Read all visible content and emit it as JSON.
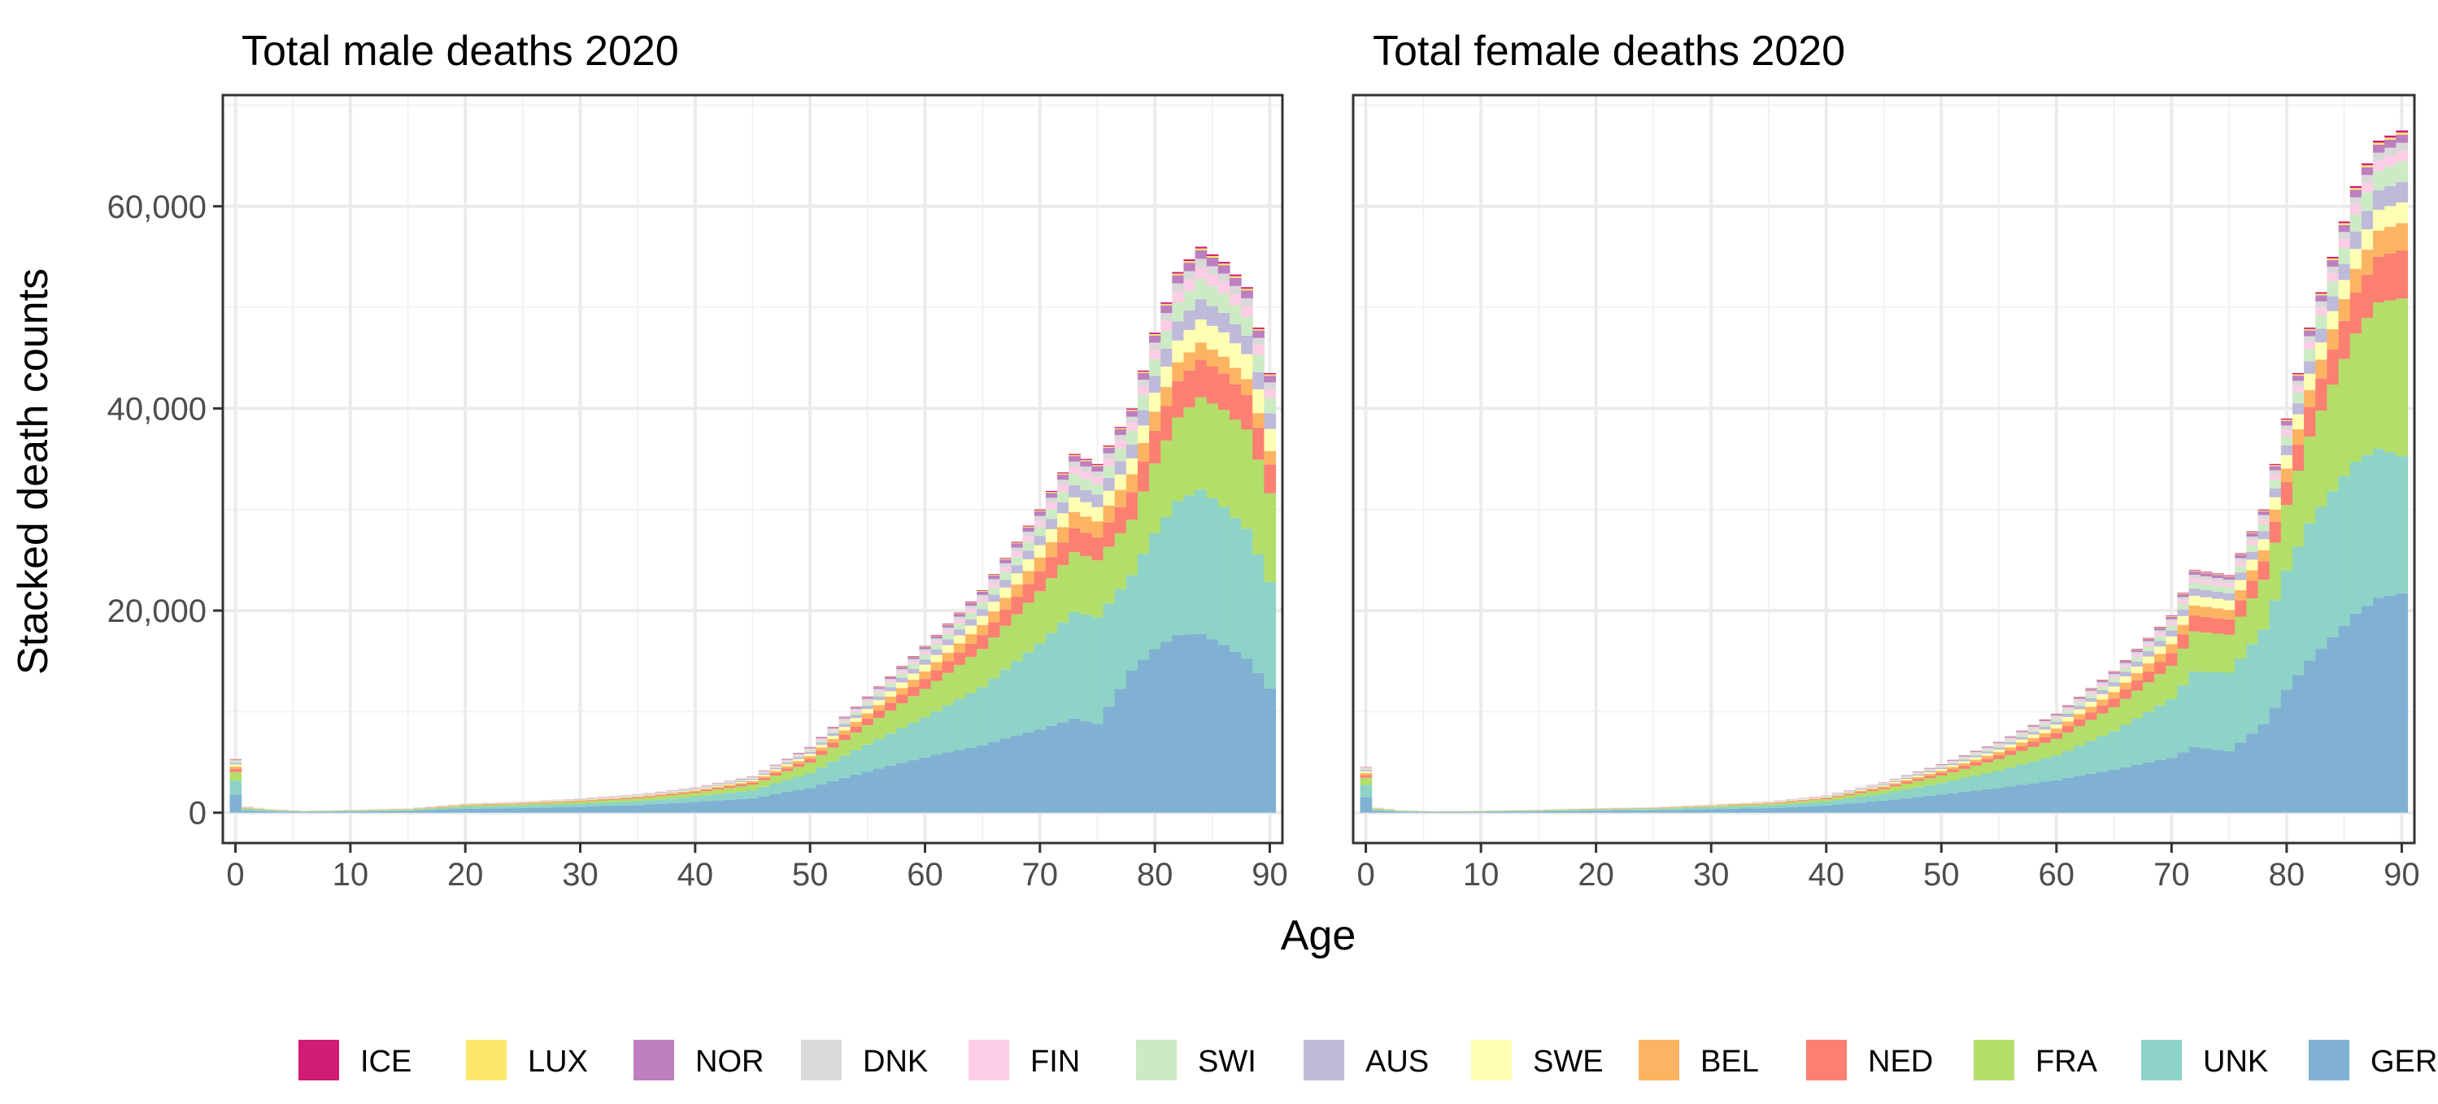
{
  "chart_data": {
    "type": "stacked-histogram",
    "xlabel": "Age",
    "ylabel": "Stacked death counts",
    "xlim": [
      0,
      90
    ],
    "ylim": [
      -3000,
      71000
    ],
    "x_ticks": [
      0,
      10,
      20,
      30,
      40,
      50,
      60,
      70,
      80,
      90
    ],
    "y_ticks": [
      0,
      20000,
      40000,
      60000
    ],
    "y_tick_labels": [
      "0",
      "20,000",
      "40,000",
      "60,000"
    ],
    "grid": true,
    "legend_position": "bottom",
    "stack_order_bottom_to_top": [
      "GER",
      "UNK",
      "FRA",
      "NED",
      "BEL",
      "SWE",
      "AUS",
      "SWI",
      "FIN",
      "DNK",
      "NOR",
      "LUX",
      "ICE"
    ],
    "legend": [
      {
        "code": "ICE",
        "color": "#D01C75"
      },
      {
        "code": "LUX",
        "color": "#FDE76B"
      },
      {
        "code": "NOR",
        "color": "#BD7FBF"
      },
      {
        "code": "DNK",
        "color": "#D9D9D9"
      },
      {
        "code": "FIN",
        "color": "#FCCDE5"
      },
      {
        "code": "SWI",
        "color": "#CCEBC5"
      },
      {
        "code": "AUS",
        "color": "#BEBADA"
      },
      {
        "code": "SWE",
        "color": "#FFFFB3"
      },
      {
        "code": "BEL",
        "color": "#FDB462"
      },
      {
        "code": "NED",
        "color": "#FB8072"
      },
      {
        "code": "FRA",
        "color": "#B3DE69"
      },
      {
        "code": "UNK",
        "color": "#8DD3C7"
      },
      {
        "code": "GER",
        "color": "#80B1D3"
      }
    ],
    "panels": [
      {
        "title": "Total male deaths 2020",
        "ages": [
          0,
          90
        ],
        "total_knots": [
          [
            0,
            5300
          ],
          [
            1,
            600
          ],
          [
            3,
            350
          ],
          [
            6,
            200
          ],
          [
            10,
            280
          ],
          [
            15,
            420
          ],
          [
            20,
            900
          ],
          [
            25,
            1100
          ],
          [
            30,
            1400
          ],
          [
            35,
            1800
          ],
          [
            40,
            2500
          ],
          [
            45,
            3600
          ],
          [
            50,
            6500
          ],
          [
            55,
            11500
          ],
          [
            60,
            16500
          ],
          [
            65,
            22000
          ],
          [
            70,
            30000
          ],
          [
            73,
            35500
          ],
          [
            75,
            34500
          ],
          [
            78,
            40000
          ],
          [
            80,
            47500
          ],
          [
            82,
            53500
          ],
          [
            84,
            56000
          ],
          [
            86,
            54500
          ],
          [
            88,
            52000
          ],
          [
            89,
            48000
          ],
          [
            90,
            43500
          ]
        ],
        "shares_knots": [
          {
            "age": 0,
            "shares": [
              0.34,
              0.26,
              0.16,
              0.06,
              0.04,
              0.04,
              0.03,
              0.03,
              0.01,
              0.01,
              0.01,
              0.005,
              0.005
            ]
          },
          {
            "age": 20,
            "shares": [
              0.42,
              0.22,
              0.14,
              0.05,
              0.04,
              0.03,
              0.03,
              0.02,
              0.015,
              0.01,
              0.01,
              0.003,
              0.003
            ]
          },
          {
            "age": 40,
            "shares": [
              0.42,
              0.21,
              0.15,
              0.05,
              0.04,
              0.03,
              0.03,
              0.02,
              0.015,
              0.012,
              0.012,
              0.003,
              0.003
            ]
          },
          {
            "age": 60,
            "shares": [
              0.33,
              0.24,
              0.17,
              0.06,
              0.045,
              0.04,
              0.03,
              0.03,
              0.018,
              0.014,
              0.014,
              0.003,
              0.003
            ]
          },
          {
            "age": 70,
            "shares": [
              0.27,
              0.28,
              0.17,
              0.065,
              0.045,
              0.04,
              0.03,
              0.03,
              0.02,
              0.015,
              0.015,
              0.003,
              0.003
            ]
          },
          {
            "age": 75,
            "shares": [
              0.25,
              0.3,
              0.16,
              0.065,
              0.045,
              0.04,
              0.035,
              0.03,
              0.02,
              0.015,
              0.015,
              0.003,
              0.003
            ]
          },
          {
            "age": 78,
            "shares": [
              0.36,
              0.24,
              0.14,
              0.07,
              0.045,
              0.04,
              0.035,
              0.035,
              0.02,
              0.015,
              0.015,
              0.003,
              0.003
            ]
          },
          {
            "age": 84,
            "shares": [
              0.31,
              0.25,
              0.16,
              0.065,
              0.03,
              0.04,
              0.035,
              0.035,
              0.02,
              0.015,
              0.015,
              0.003,
              0.003
            ]
          },
          {
            "age": 90,
            "shares": [
              0.28,
              0.24,
              0.2,
              0.065,
              0.03,
              0.05,
              0.035,
              0.035,
              0.02,
              0.015,
              0.015,
              0.003,
              0.003
            ]
          }
        ]
      },
      {
        "title": "Total female deaths 2020",
        "ages": [
          0,
          90
        ],
        "total_knots": [
          [
            0,
            4500
          ],
          [
            1,
            500
          ],
          [
            3,
            250
          ],
          [
            6,
            150
          ],
          [
            10,
            200
          ],
          [
            15,
            300
          ],
          [
            20,
            450
          ],
          [
            25,
            550
          ],
          [
            30,
            800
          ],
          [
            35,
            1100
          ],
          [
            40,
            1700
          ],
          [
            45,
            3000
          ],
          [
            50,
            4800
          ],
          [
            55,
            7000
          ],
          [
            60,
            9800
          ],
          [
            65,
            14000
          ],
          [
            70,
            19500
          ],
          [
            72,
            24000
          ],
          [
            75,
            23500
          ],
          [
            78,
            30000
          ],
          [
            80,
            39000
          ],
          [
            82,
            48000
          ],
          [
            84,
            55000
          ],
          [
            86,
            62000
          ],
          [
            88,
            66500
          ],
          [
            90,
            67500
          ]
        ],
        "shares_knots": [
          {
            "age": 0,
            "shares": [
              0.34,
              0.27,
              0.16,
              0.06,
              0.04,
              0.04,
              0.03,
              0.03,
              0.01,
              0.01,
              0.005,
              0.005,
              0.005
            ]
          },
          {
            "age": 20,
            "shares": [
              0.44,
              0.24,
              0.13,
              0.05,
              0.04,
              0.03,
              0.02,
              0.02,
              0.01,
              0.01,
              0.007,
              0.003,
              0.003
            ]
          },
          {
            "age": 40,
            "shares": [
              0.42,
              0.23,
              0.14,
              0.05,
              0.04,
              0.03,
              0.03,
              0.02,
              0.015,
              0.01,
              0.012,
              0.003,
              0.003
            ]
          },
          {
            "age": 60,
            "shares": [
              0.33,
              0.25,
              0.17,
              0.06,
              0.045,
              0.04,
              0.03,
              0.03,
              0.018,
              0.014,
              0.013,
              0.003,
              0.003
            ]
          },
          {
            "age": 70,
            "shares": [
              0.28,
              0.3,
              0.17,
              0.065,
              0.045,
              0.04,
              0.03,
              0.025,
              0.018,
              0.014,
              0.013,
              0.003,
              0.003
            ]
          },
          {
            "age": 75,
            "shares": [
              0.26,
              0.33,
              0.16,
              0.065,
              0.04,
              0.04,
              0.03,
              0.025,
              0.018,
              0.014,
              0.013,
              0.003,
              0.003
            ]
          },
          {
            "age": 80,
            "shares": [
              0.32,
              0.31,
              0.17,
              0.06,
              0.035,
              0.035,
              0.025,
              0.025,
              0.015,
              0.012,
              0.012,
              0.003,
              0.003
            ]
          },
          {
            "age": 90,
            "shares": [
              0.32,
              0.2,
              0.23,
              0.07,
              0.04,
              0.03,
              0.03,
              0.03,
              0.015,
              0.012,
              0.012,
              0.003,
              0.003
            ]
          }
        ]
      }
    ]
  }
}
